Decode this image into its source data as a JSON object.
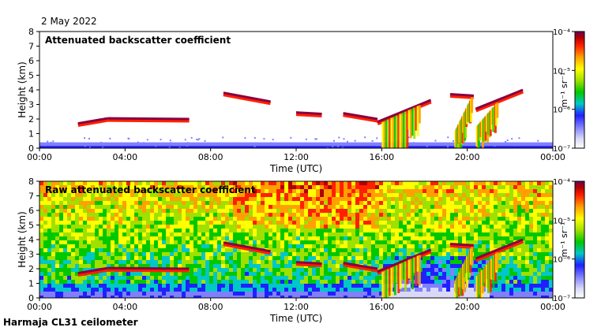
{
  "date_label": "2 May 2022",
  "footer_label": "Harmaja CL31 ceilometer",
  "colors": {
    "colormap": [
      "#ffffff",
      "#d9d9f7",
      "#8080ff",
      "#2020ff",
      "#00c8c8",
      "#00c800",
      "#a0e000",
      "#ffff00",
      "#ffa000",
      "#ff2000",
      "#b00000",
      "#6a0060"
    ],
    "frame": "#000000"
  },
  "chart_data": [
    {
      "type": "heatmap",
      "title": "Attenuated backscatter coefficient",
      "xlabel": "Time (UTC)",
      "ylabel": "Height (km)",
      "xlim": [
        "00:00",
        "00:00"
      ],
      "x_ticks": [
        "00:00",
        "04:00",
        "08:00",
        "12:00",
        "16:00",
        "20:00",
        "00:00"
      ],
      "ylim": [
        0,
        8
      ],
      "y_ticks": [
        "0",
        "1",
        "2",
        "3",
        "4",
        "5",
        "6",
        "7",
        "8"
      ],
      "colorbar": {
        "unit": "m⁻¹ sr⁻¹",
        "scale": "log",
        "ticks": [
          "10⁻⁷",
          "10⁻⁶",
          "10⁻⁵",
          "10⁻⁴"
        ]
      },
      "cloud_layers": [
        {
          "start_hour": 1.8,
          "end_hour": 3.2,
          "height_km_start": 1.7,
          "height_km_end": 2.05
        },
        {
          "start_hour": 3.2,
          "end_hour": 7.0,
          "height_km_start": 2.05,
          "height_km_end": 2.0
        },
        {
          "start_hour": 8.6,
          "end_hour": 10.8,
          "height_km_start": 3.8,
          "height_km_end": 3.2
        },
        {
          "start_hour": 12.0,
          "end_hour": 13.2,
          "height_km_start": 2.45,
          "height_km_end": 2.35
        },
        {
          "start_hour": 14.2,
          "end_hour": 15.8,
          "height_km_start": 2.4,
          "height_km_end": 2.0
        },
        {
          "start_hour": 15.8,
          "end_hour": 18.3,
          "height_km_start": 1.8,
          "height_km_end": 3.3
        },
        {
          "start_hour": 19.2,
          "end_hour": 20.3,
          "height_km_start": 3.7,
          "height_km_end": 3.6
        },
        {
          "start_hour": 20.4,
          "end_hour": 22.6,
          "height_km_start": 2.7,
          "height_km_end": 4.0
        }
      ],
      "boundary_layer_top_km": 0.4
    },
    {
      "type": "heatmap",
      "title": "Raw attenuated backscatter coefficient",
      "xlabel": "Time (UTC)",
      "ylabel": "Height (km)",
      "xlim": [
        "00:00",
        "00:00"
      ],
      "x_ticks": [
        "00:00",
        "04:00",
        "08:00",
        "12:00",
        "16:00",
        "20:00",
        "00:00"
      ],
      "ylim": [
        0,
        8
      ],
      "y_ticks": [
        "0",
        "1",
        "2",
        "3",
        "4",
        "5",
        "6",
        "7",
        "8"
      ],
      "colorbar": {
        "unit": "m⁻¹ sr⁻¹",
        "scale": "log",
        "ticks": [
          "10⁻⁷",
          "10⁻⁶",
          "10⁻⁵",
          "10⁻⁴"
        ]
      },
      "cloud_layers": [
        {
          "start_hour": 1.8,
          "end_hour": 3.2,
          "height_km_start": 1.7,
          "height_km_end": 2.05
        },
        {
          "start_hour": 3.2,
          "end_hour": 7.0,
          "height_km_start": 2.05,
          "height_km_end": 2.0
        },
        {
          "start_hour": 8.6,
          "end_hour": 10.8,
          "height_km_start": 3.8,
          "height_km_end": 3.2
        },
        {
          "start_hour": 12.0,
          "end_hour": 13.2,
          "height_km_start": 2.45,
          "height_km_end": 2.35
        },
        {
          "start_hour": 14.2,
          "end_hour": 15.8,
          "height_km_start": 2.4,
          "height_km_end": 2.0
        },
        {
          "start_hour": 15.8,
          "end_hour": 18.3,
          "height_km_start": 1.8,
          "height_km_end": 3.3
        },
        {
          "start_hour": 19.2,
          "end_hour": 20.3,
          "height_km_start": 3.7,
          "height_km_end": 3.6
        },
        {
          "start_hour": 20.4,
          "end_hour": 22.6,
          "height_km_start": 2.7,
          "height_km_end": 4.0
        }
      ],
      "boundary_layer_top_km": 1.0,
      "noisy_background": true
    }
  ]
}
